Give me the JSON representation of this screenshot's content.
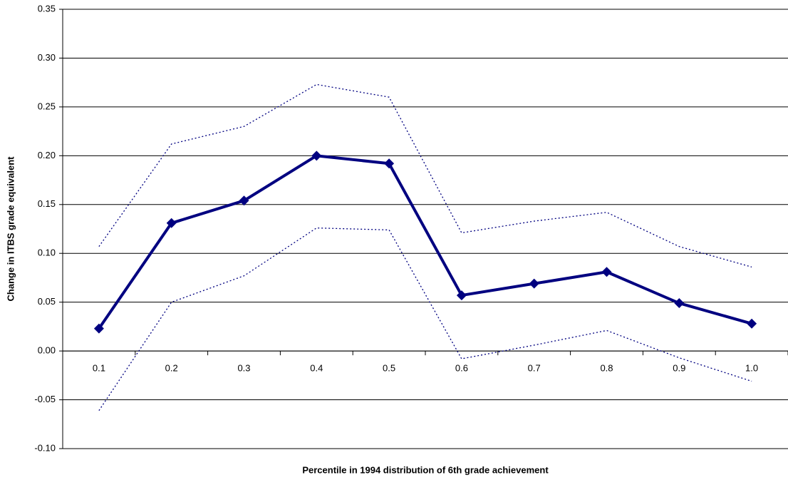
{
  "chart_data": {
    "type": "line",
    "y_label": "Change in ITBS grade equivalent",
    "x_label": "Percentile in 1994 distribution of 6th grade achievement",
    "categories": [
      "0.1",
      "0.2",
      "0.3",
      "0.4",
      "0.5",
      "0.6",
      "0.7",
      "0.8",
      "0.9",
      "1.0"
    ],
    "series": [
      {
        "color": "#000080",
        "style": "solid",
        "marker": "diamond",
        "values": [
          0.023,
          0.131,
          0.154,
          0.2,
          0.192,
          0.057,
          0.069,
          0.081,
          0.049,
          0.028
        ]
      },
      {
        "color": "#000080",
        "style": "dotted",
        "values": [
          0.107,
          0.212,
          0.23,
          0.273,
          0.26,
          0.121,
          0.133,
          0.142,
          0.107,
          0.086
        ]
      },
      {
        "color": "#000080",
        "style": "dotted",
        "values": [
          -0.061,
          0.05,
          0.077,
          0.126,
          0.124,
          -0.008,
          0.006,
          0.021,
          -0.007,
          -0.031
        ]
      }
    ],
    "ylim": [
      -0.1,
      0.35
    ],
    "yticks": [
      {
        "value": -0.1,
        "label": "-0.10"
      },
      -0.05,
      {
        "value": 0,
        "label": "0.00"
      },
      0.05,
      {
        "value": 0.1,
        "label": "0.10"
      },
      0.15,
      {
        "value": 0.2,
        "label": "0.20"
      },
      0.25,
      {
        "value": 0.3,
        "label": "0.30"
      },
      0.35
    ],
    "grid": true
  }
}
